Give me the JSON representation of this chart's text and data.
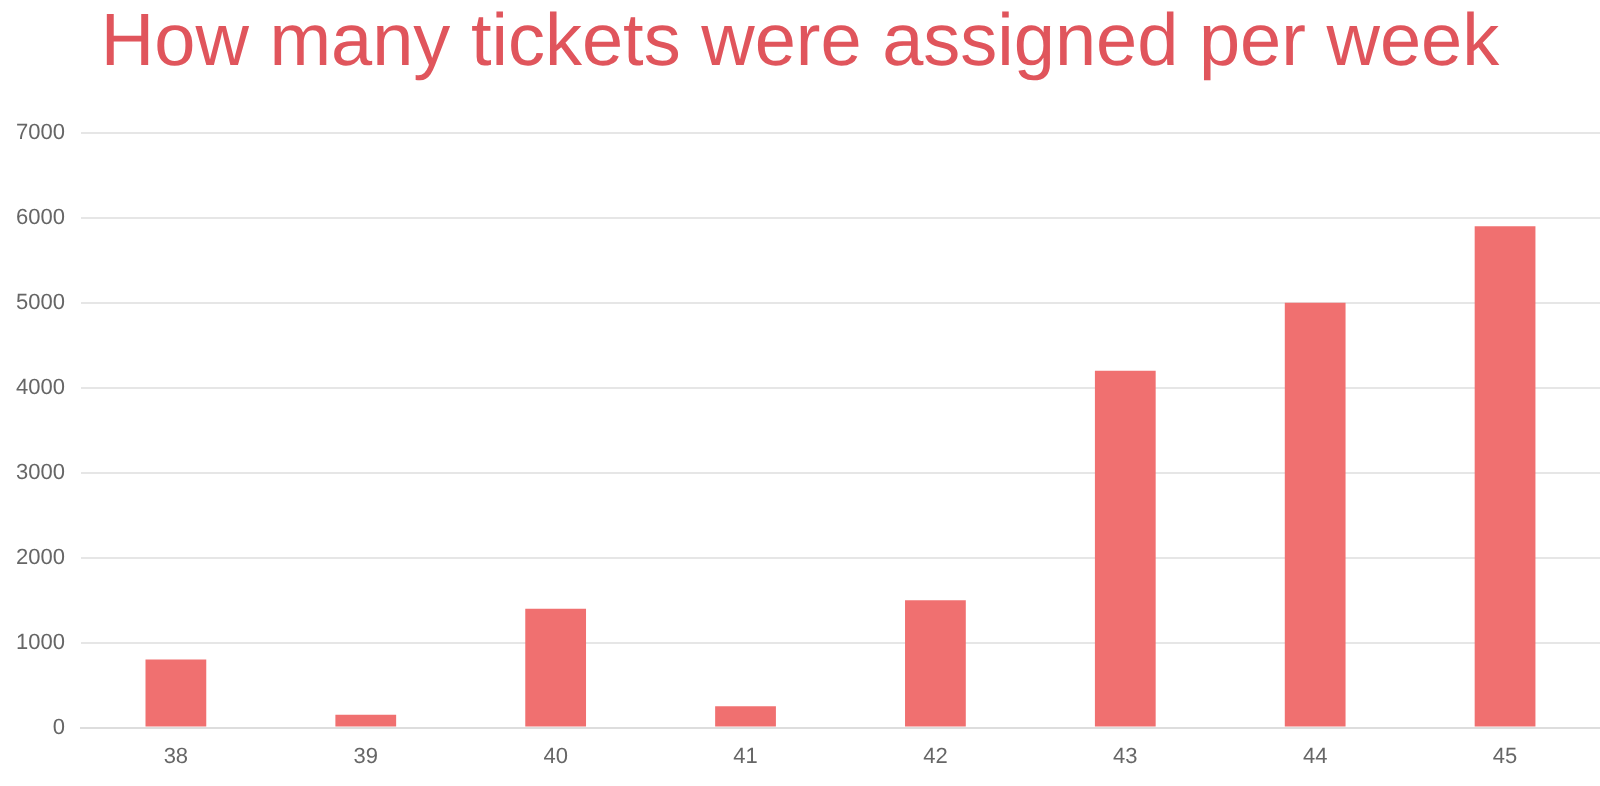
{
  "chart_data": {
    "type": "bar",
    "title": "How many tickets were assigned per week",
    "categories": [
      "38",
      "39",
      "40",
      "41",
      "42",
      "43",
      "44",
      "45"
    ],
    "values": [
      800,
      150,
      1400,
      250,
      1500,
      4200,
      5000,
      5900
    ],
    "color": "#f07070",
    "ylim": [
      0,
      7000
    ],
    "yticks": [
      0,
      1000,
      2000,
      3000,
      4000,
      5000,
      6000,
      7000
    ],
    "grid": "y"
  }
}
